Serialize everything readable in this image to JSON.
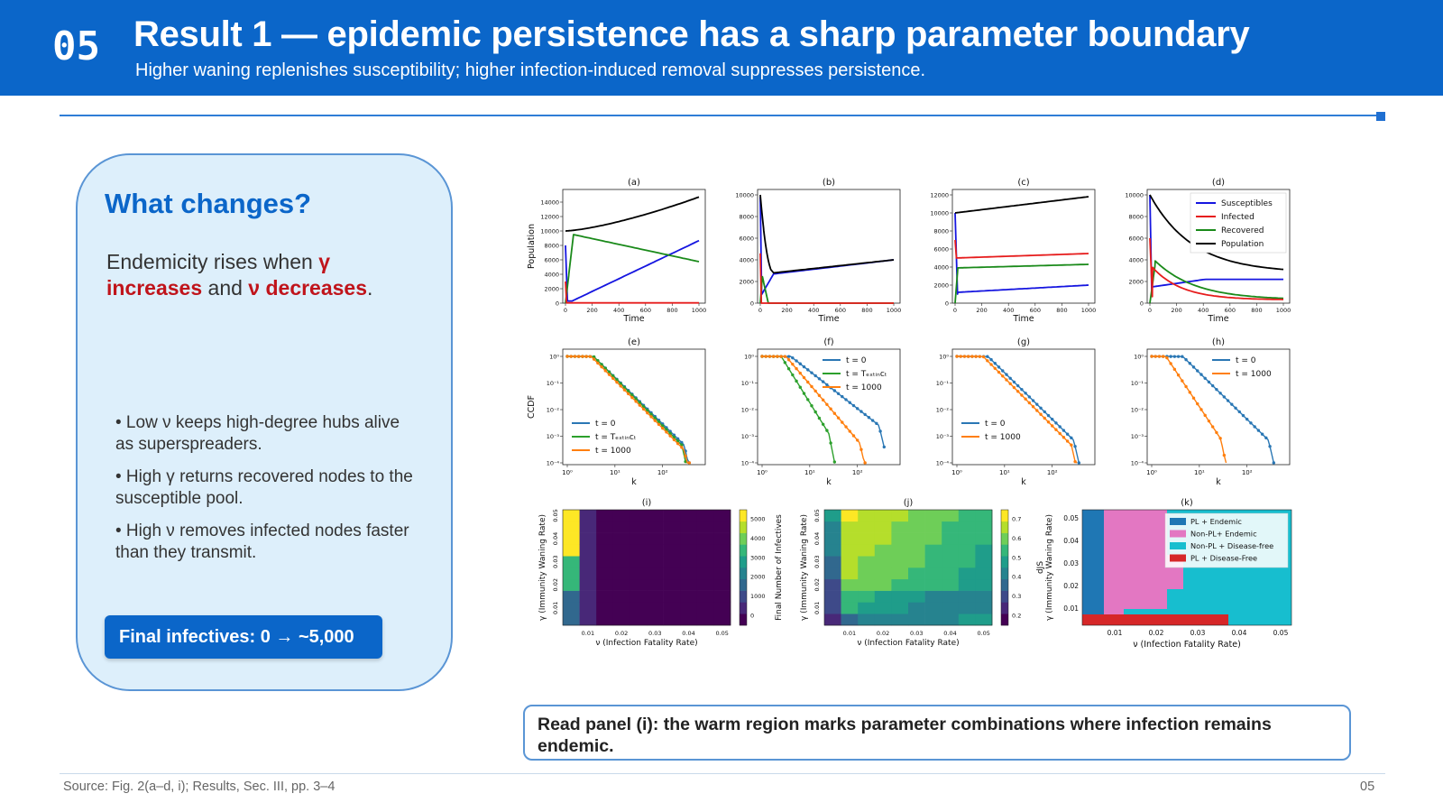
{
  "header": {
    "number": "05",
    "title": "Result 1 — epidemic persistence has a sharp parameter boundary",
    "subtitle": "Higher waning replenishes susceptibility; higher infection-induced removal suppresses persistence."
  },
  "card": {
    "title": "What changes?",
    "lead_prefix": "Endemicity rises when ",
    "gamma_phrase": "γ increases",
    "lead_middle": " and ",
    "nu_phrase": "ν decreases",
    "lead_suffix": ".",
    "bullets": [
      "• Low ν keeps high-degree hubs alive as superspreaders.",
      "• High γ returns recovered nodes to the susceptible pool.",
      "• High ν removes infected nodes faster than they transmit."
    ],
    "pill": "Final infectives: 0 → ~5,000"
  },
  "figure": {
    "panel_labels": [
      "(a)",
      "(b)",
      "(c)",
      "(d)",
      "(e)",
      "(f)",
      "(g)",
      "(h)",
      "(i)",
      "(j)",
      "(k)"
    ],
    "time_xlabel": "Time",
    "population_ylabel": "Population",
    "ccdf_ylabel": "CCDF",
    "k_xlabel": "k",
    "heat_xlabel": "ν (Infection Fatality Rate)",
    "heat_ylabel": "γ (Immunity Waning Rate)",
    "colorbar_i_label": "Final Number of Infectives",
    "colorbar_j_label": "dJS",
    "time_legend": [
      "Susceptibles",
      "Infected",
      "Recovered",
      "Population"
    ],
    "ccdf_legend": [
      "t = 0",
      "t = T_extinct",
      "t = 1000"
    ],
    "map_legend": [
      "PL + Endemic",
      "Non-PL+ Endemic",
      "Non-PL + Disease-free",
      "PL + Disease-Free"
    ],
    "colors": {
      "susceptibles": "#1515e0",
      "infected": "#e61c1c",
      "recovered": "#1a8a1a",
      "population": "#000000",
      "t0": "#2a77b4",
      "textinct": "#2ca02c",
      "t1000": "#ff7f0e"
    }
  },
  "callout": "Read panel (i): the warm region marks parameter combinations where infection remains endemic.",
  "footer": {
    "source": "Source: Fig. 2(a–d, i); Results, Sec. III, pp. 3–4",
    "page": "05"
  }
}
